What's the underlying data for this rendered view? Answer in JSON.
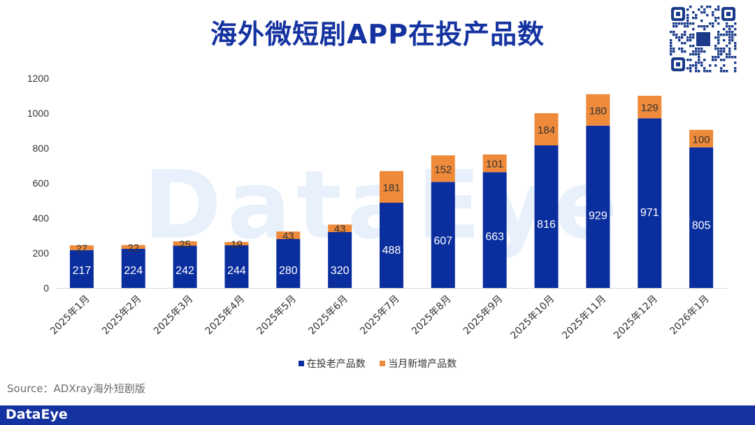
{
  "title": "海外微短剧APP在投产品数",
  "watermark": "DataEye",
  "source": "Source：ADXray海外短剧版",
  "footer": {
    "brand": "DataEye"
  },
  "colors": {
    "old": "#0a2e9e",
    "new": "#ee8a3a",
    "title": "#1432a0",
    "footer": "#1432a0"
  },
  "legend": [
    {
      "name": "在投老产品数",
      "color": "#0a2e9e"
    },
    {
      "name": "当月新增产品数",
      "color": "#ee8a3a"
    }
  ],
  "chart_data": {
    "type": "bar",
    "stacked": true,
    "title": "海外微短剧APP在投产品数",
    "categories": [
      "2025年1月",
      "2025年2月",
      "2025年3月",
      "2025年4月",
      "2025年5月",
      "2025年6月",
      "2025年7月",
      "2025年8月",
      "2025年9月",
      "2025年10月",
      "2025年11月",
      "2025年12月",
      "2026年1月"
    ],
    "series": [
      {
        "name": "在投老产品数",
        "values": [
          217,
          224,
          242,
          244,
          280,
          320,
          488,
          607,
          663,
          816,
          929,
          971,
          805
        ]
      },
      {
        "name": "当月新增产品数",
        "values": [
          27,
          22,
          25,
          19,
          43,
          43,
          181,
          152,
          101,
          184,
          180,
          129,
          100
        ]
      }
    ],
    "ylim": [
      0,
      1200
    ],
    "yticks": [
      0,
      200,
      400,
      600,
      800,
      1000,
      1200
    ],
    "grid": false,
    "legend_position": "bottom"
  }
}
